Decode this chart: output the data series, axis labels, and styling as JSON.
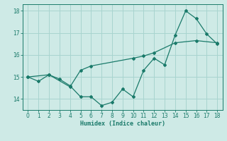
{
  "x_jagged": [
    0,
    1,
    2,
    3,
    4,
    5,
    6,
    7,
    8,
    9,
    10,
    11,
    12,
    13,
    14,
    15,
    16,
    17,
    18
  ],
  "y_jagged": [
    15.0,
    14.8,
    15.1,
    14.9,
    14.6,
    14.1,
    14.1,
    13.7,
    13.85,
    14.45,
    14.1,
    15.3,
    15.85,
    15.55,
    16.9,
    18.0,
    17.65,
    16.95,
    16.5
  ],
  "x_smooth": [
    0,
    2,
    4,
    5,
    6,
    10,
    11,
    12,
    14,
    16,
    18
  ],
  "y_smooth": [
    15.0,
    15.1,
    14.55,
    15.3,
    15.5,
    15.85,
    15.95,
    16.1,
    16.55,
    16.65,
    16.55
  ],
  "color": "#1a7a6a",
  "bg_color": "#ceeae6",
  "grid_color": "#a8d4cf",
  "xlabel": "Humidex (Indice chaleur)",
  "xlim": [
    -0.5,
    18.5
  ],
  "ylim": [
    13.5,
    18.3
  ],
  "yticks": [
    14,
    15,
    16,
    17,
    18
  ],
  "xticks": [
    0,
    1,
    2,
    3,
    4,
    5,
    6,
    7,
    8,
    9,
    10,
    11,
    12,
    13,
    14,
    15,
    16,
    17,
    18
  ],
  "xlabel_fontsize": 6.0,
  "tick_fontsize": 5.5,
  "linewidth": 0.9,
  "markersize": 2.0
}
